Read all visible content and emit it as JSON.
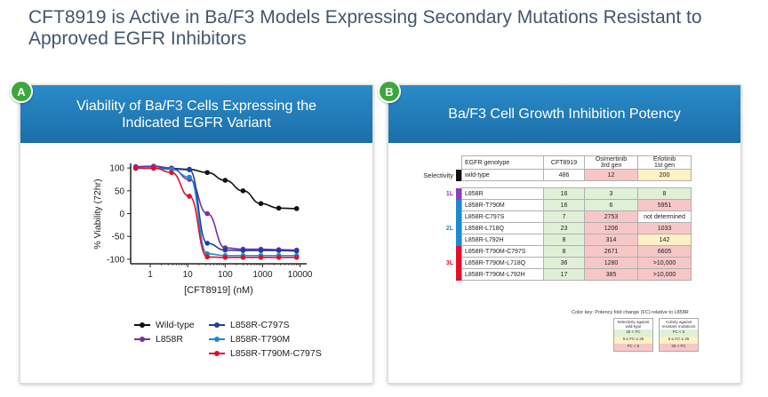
{
  "page_title": "CFT8919 is Active in Ba/F3 Models Expressing Secondary Mutations Resistant to Approved EGFR Inhibitors",
  "panel_a": {
    "badge": "A",
    "title": "Viability of Ba/F3 Cells Expressing the Indicated EGFR Variant"
  },
  "panel_b": {
    "badge": "B",
    "title": "Ba/F3 Cell Growth Inhibition Potency"
  },
  "chart_data": {
    "type": "line",
    "xscale": "log",
    "xlabel": "[CFT8919] (nM)",
    "ylabel": "% Viability (72hr)",
    "xlim": [
      0.3,
      15000
    ],
    "ylim": [
      -110,
      110
    ],
    "xticks": [
      1,
      10,
      100,
      1000,
      10000
    ],
    "xtick_labels": [
      "1",
      "10",
      "100",
      "1000",
      "10000"
    ],
    "yticks": [
      100,
      50,
      0,
      -50,
      -100
    ],
    "ytick_labels": [
      "100",
      "50",
      "0",
      "-50",
      "-100"
    ],
    "x": [
      0.41,
      1.23,
      3.7,
      11.1,
      33.3,
      100,
      300,
      900,
      2700,
      8100
    ],
    "series": [
      {
        "name": "Wild-type",
        "color": "#111111",
        "values": [
          100,
          100,
          99,
          97,
          90,
          73,
          50,
          22,
          12,
          11
        ]
      },
      {
        "name": "L858R",
        "color": "#7a2fa0",
        "values": [
          103,
          104,
          100,
          75,
          0,
          -75,
          -78,
          -78,
          -79,
          -80
        ]
      },
      {
        "name": "L858R-C797S",
        "color": "#1f3f9e",
        "values": [
          99,
          100,
          98,
          96,
          -65,
          -80,
          -81,
          -81,
          -81,
          -82
        ]
      },
      {
        "name": "L858R-T790M",
        "color": "#1c8ad0",
        "values": [
          99,
          99,
          97,
          80,
          -88,
          -92,
          -92,
          -92,
          -92,
          -92
        ]
      },
      {
        "name": "L858R-T790M-C797S",
        "color": "#e0102a",
        "values": [
          100,
          100,
          90,
          38,
          -95,
          -96,
          -96,
          -96,
          -96,
          -96
        ]
      }
    ]
  },
  "table": {
    "headers": [
      "EGFR genotype",
      "CFT8919",
      "Osimertinib",
      "Erlotinib"
    ],
    "header_subs": [
      "",
      "",
      "3rd gen",
      "1st gen"
    ],
    "selectivity_label": "Selectivity",
    "wt_row": {
      "genotype": "wild-type",
      "values": [
        "486",
        "12",
        "200"
      ]
    },
    "groups": [
      {
        "label": "1L",
        "color": "#8a3fb0",
        "rows": [
          {
            "genotype": "L858R",
            "values": [
              "16",
              "3",
              "8"
            ]
          }
        ]
      },
      {
        "label": "2L",
        "color": "#1c8ad0",
        "rows": [
          {
            "genotype": "L858R-T790M",
            "values": [
              "16",
              "6",
              "5951"
            ]
          },
          {
            "genotype": "L858R-C797S",
            "values": [
              "7",
              "2753",
              "not determined"
            ]
          },
          {
            "genotype": "L858R-L718Q",
            "values": [
              "23",
              "1206",
              "1033"
            ]
          },
          {
            "genotype": "L858R-L792H",
            "values": [
              "8",
              "314",
              "142"
            ]
          }
        ]
      },
      {
        "label": "3L",
        "color": "#e0102a",
        "rows": [
          {
            "genotype": "L858R-T790M-C797S",
            "values": [
              "8",
              "2671",
              "6605"
            ]
          },
          {
            "genotype": "L858R-T790M-L718Q",
            "values": [
              "36",
              "1280",
              ">10,000"
            ]
          },
          {
            "genotype": "L858R-T790M-L792H",
            "values": [
              "17",
              "385",
              ">10,000"
            ]
          }
        ]
      }
    ],
    "color_key": {
      "title": "Color key: Potency fold change (FC) relative to L858R",
      "selectivity_head": "Selectivity against wild-type",
      "resistance_head": "Activity against resistant mutations",
      "selectivity_items": [
        "25 < FC",
        "5 ≤ FC ≤ 25",
        "FC < 5"
      ],
      "resistance_items": [
        "FC < 5",
        "5 ≤ FC ≤ 25",
        "25 < FC"
      ]
    }
  }
}
